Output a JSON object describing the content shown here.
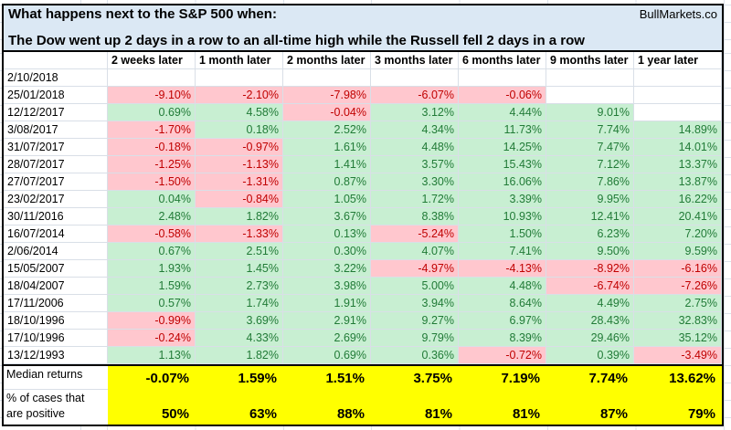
{
  "header": {
    "title": "What happens next to the S&P 500 when:",
    "brand": "BullMarkets.co",
    "subtitle": "The Dow went up 2 days in a row to an all-time high while the Russell fell 2 days in a row"
  },
  "colors": {
    "title_bg": "#dbe8f4",
    "positive_bg": "#c8efd2",
    "positive_text": "#217b37",
    "negative_bg": "#ffc7ce",
    "negative_text": "#c00000",
    "summary_bg": "#ffff00"
  },
  "table": {
    "columns": [
      "2 weeks later",
      "1 month later",
      "2 months later",
      "3 months later",
      "6 months later",
      "9 months later",
      "1 year later"
    ],
    "rows": [
      {
        "date": "2/10/2018",
        "cells": [
          null,
          null,
          null,
          null,
          null,
          null,
          null
        ]
      },
      {
        "date": "25/01/2018",
        "cells": [
          "-9.10%",
          "-2.10%",
          "-7.98%",
          "-6.07%",
          "-0.06%",
          null,
          null
        ]
      },
      {
        "date": "12/12/2017",
        "cells": [
          "0.69%",
          "4.58%",
          "-0.04%",
          "3.12%",
          "4.44%",
          "9.01%",
          null
        ]
      },
      {
        "date": "3/08/2017",
        "cells": [
          "-1.70%",
          "0.18%",
          "2.52%",
          "4.34%",
          "11.73%",
          "7.74%",
          "14.89%"
        ]
      },
      {
        "date": "31/07/2017",
        "cells": [
          "-0.18%",
          "-0.97%",
          "1.61%",
          "4.48%",
          "14.25%",
          "7.47%",
          "14.01%"
        ]
      },
      {
        "date": "28/07/2017",
        "cells": [
          "-1.25%",
          "-1.13%",
          "1.41%",
          "3.57%",
          "15.43%",
          "7.12%",
          "13.37%"
        ]
      },
      {
        "date": "27/07/2017",
        "cells": [
          "-1.50%",
          "-1.31%",
          "0.87%",
          "3.30%",
          "16.06%",
          "7.86%",
          "13.87%"
        ]
      },
      {
        "date": "23/02/2017",
        "cells": [
          "0.04%",
          "-0.84%",
          "1.05%",
          "1.72%",
          "3.39%",
          "9.95%",
          "16.22%"
        ]
      },
      {
        "date": "30/11/2016",
        "cells": [
          "2.48%",
          "1.82%",
          "3.67%",
          "8.38%",
          "10.93%",
          "12.41%",
          "20.41%"
        ]
      },
      {
        "date": "16/07/2014",
        "cells": [
          "-0.58%",
          "-1.33%",
          "0.13%",
          "-5.24%",
          "1.50%",
          "6.23%",
          "7.20%"
        ]
      },
      {
        "date": "2/06/2014",
        "cells": [
          "0.67%",
          "2.51%",
          "0.30%",
          "4.07%",
          "7.41%",
          "9.50%",
          "9.59%"
        ]
      },
      {
        "date": "15/05/2007",
        "cells": [
          "1.93%",
          "1.45%",
          "3.22%",
          "-4.97%",
          "-4.13%",
          "-8.92%",
          "-6.16%"
        ]
      },
      {
        "date": "18/04/2007",
        "cells": [
          "1.59%",
          "2.73%",
          "3.98%",
          "5.00%",
          "4.48%",
          "-6.74%",
          "-7.26%"
        ]
      },
      {
        "date": "17/11/2006",
        "cells": [
          "0.57%",
          "1.74%",
          "1.91%",
          "3.94%",
          "8.64%",
          "4.49%",
          "2.75%"
        ]
      },
      {
        "date": "18/10/1996",
        "cells": [
          "-0.99%",
          "3.69%",
          "2.91%",
          "9.27%",
          "6.97%",
          "28.43%",
          "32.83%"
        ]
      },
      {
        "date": "17/10/1996",
        "cells": [
          "-0.24%",
          "4.33%",
          "2.69%",
          "9.79%",
          "8.39%",
          "29.46%",
          "35.12%"
        ]
      },
      {
        "date": "13/12/1993",
        "cells": [
          "1.13%",
          "1.82%",
          "0.69%",
          "0.36%",
          "-0.72%",
          "0.39%",
          "-3.49%"
        ]
      }
    ],
    "summary": [
      {
        "label": "Median returns",
        "values": [
          "-0.07%",
          "1.59%",
          "1.51%",
          "3.75%",
          "7.19%",
          "7.74%",
          "13.62%"
        ]
      },
      {
        "label": "% of cases that\nare positive",
        "values": [
          "50%",
          "63%",
          "88%",
          "81%",
          "81%",
          "87%",
          "79%"
        ]
      }
    ]
  }
}
